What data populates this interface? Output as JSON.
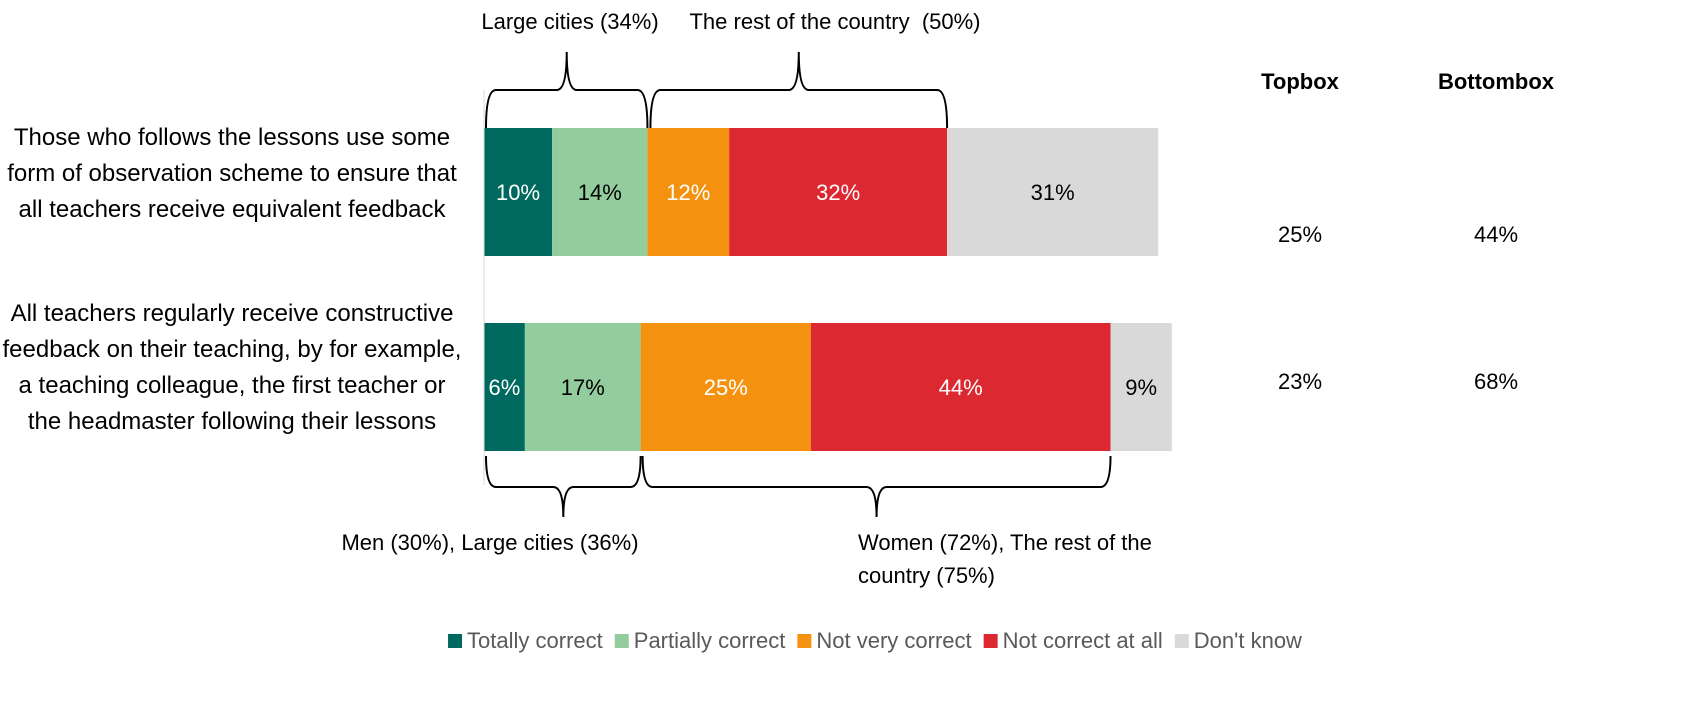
{
  "chart_data": {
    "type": "stacked-bar-horizontal",
    "categories": [
      "Those who follows the lessons use some form of observation scheme to ensure that all teachers receive equivalent feedback",
      "All teachers regularly receive constructive feedback on their teaching, by for example, a teaching colleague, the first teacher or the headmaster following their lessons"
    ],
    "xlim": [
      0,
      100
    ],
    "series": [
      {
        "name": "Totally correct",
        "color": "#00695f",
        "values": [
          10,
          6
        ],
        "value_labels": [
          "10%",
          "6%"
        ]
      },
      {
        "name": "Partially correct",
        "color": "#93cd9e",
        "values": [
          14,
          17
        ],
        "value_labels": [
          "14%",
          "17%"
        ]
      },
      {
        "name": "Not very correct",
        "color": "#f4920f",
        "values": [
          12,
          25
        ],
        "value_labels": [
          "12%",
          "25%"
        ]
      },
      {
        "name": "Not correct at all",
        "color": "#dc2831",
        "values": [
          32,
          44
        ],
        "value_labels": [
          "32%",
          "44%"
        ]
      },
      {
        "name": "Don't know",
        "color": "#d9d9d9",
        "values": [
          31,
          9
        ],
        "value_labels": [
          "31%",
          "9%"
        ]
      }
    ],
    "summary": [
      {
        "name": "Topbox",
        "values": [
          25,
          23
        ],
        "value_labels": [
          "25%",
          "23%"
        ]
      },
      {
        "name": "Bottombox",
        "values": [
          44,
          68
        ],
        "value_labels": [
          "44%",
          "68%"
        ]
      }
    ],
    "annotations": [
      "Large cities (34%)",
      "The rest of the country  (50%)",
      "Men (30%), Large cities (36%)",
      "Women (72%), The rest of the country (75%)"
    ],
    "legend": "bottom"
  }
}
